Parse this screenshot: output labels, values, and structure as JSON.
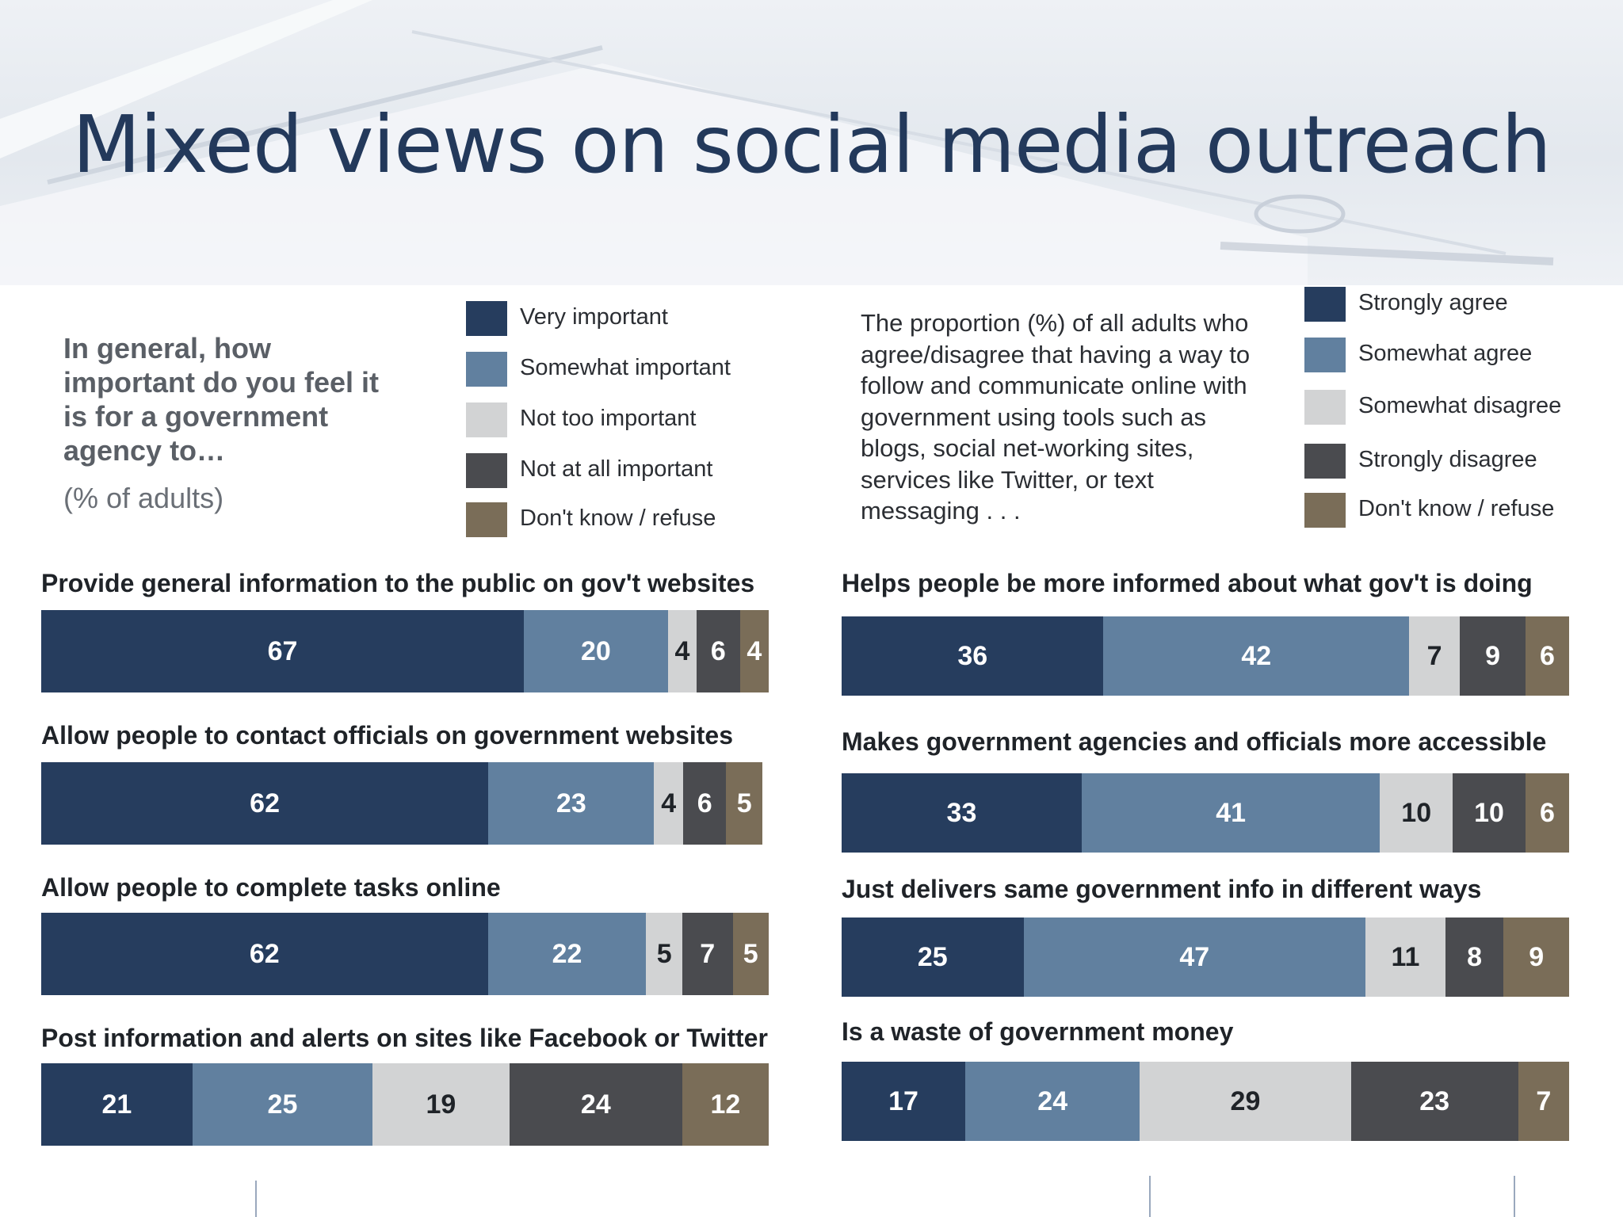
{
  "slide": {
    "title": "Mixed views on social media outreach"
  },
  "colors": {
    "dark_navy": "#263d5e",
    "steel_blue": "#61809f",
    "light_gray": "#d2d3d4",
    "dark_gray": "#4a4b4f",
    "taupe": "#7a6d58",
    "title_blue": "#23395b"
  },
  "left_panel": {
    "question": "In general, how important do you feel it is for a government agency to…",
    "subtitle": "(% of adults)",
    "legend": [
      "Very important",
      "Somewhat important",
      "Not too important",
      "Not at all important",
      "Don't know / refuse"
    ]
  },
  "right_panel": {
    "question": "The proportion (%) of all adults who agree/disagree that having a way to follow and communicate online with government using tools such as blogs, social net-working sites, services like Twitter, or text messaging . . .",
    "legend": [
      "Strongly agree",
      "Somewhat agree",
      "Somewhat disagree",
      "Strongly disagree",
      "Don't know / refuse"
    ]
  },
  "chart_data": [
    {
      "type": "bar",
      "stacked": true,
      "orientation": "horizontal",
      "title": "In general, how important do you feel it is for a government agency to…",
      "subtitle": "(% of adults)",
      "legend_labels": [
        "Very important",
        "Somewhat important",
        "Not too important",
        "Not at all important",
        "Don't know / refuse"
      ],
      "categories": [
        "Provide general information to the public on gov't websites",
        "Allow people to contact officials on government websites",
        "Allow people to complete tasks online",
        "Post information and alerts on sites like Facebook or Twitter"
      ],
      "series": [
        {
          "name": "Very important",
          "values": [
            67,
            62,
            62,
            21
          ]
        },
        {
          "name": "Somewhat important",
          "values": [
            20,
            23,
            22,
            25
          ]
        },
        {
          "name": "Not too important",
          "values": [
            4,
            4,
            5,
            19
          ]
        },
        {
          "name": "Not at all important",
          "values": [
            6,
            6,
            7,
            24
          ]
        },
        {
          "name": "Don't know / refuse",
          "values": [
            4,
            5,
            5,
            12
          ]
        }
      ]
    },
    {
      "type": "bar",
      "stacked": true,
      "orientation": "horizontal",
      "title": "The proportion (%) of all adults who agree/disagree that having a way to follow and communicate online with government using tools such as blogs, social net-working sites, services like Twitter, or text messaging . . .",
      "legend_labels": [
        "Strongly agree",
        "Somewhat agree",
        "Somewhat disagree",
        "Strongly disagree",
        "Don't know / refuse"
      ],
      "categories": [
        "Helps people be more informed about what gov't is doing",
        "Makes government agencies and officials more accessible",
        "Just delivers same government info in different ways",
        "Is a waste of government money"
      ],
      "series": [
        {
          "name": "Strongly agree",
          "values": [
            36,
            33,
            25,
            17
          ]
        },
        {
          "name": "Somewhat agree",
          "values": [
            42,
            41,
            47,
            24
          ]
        },
        {
          "name": "Somewhat disagree",
          "values": [
            7,
            10,
            11,
            29
          ]
        },
        {
          "name": "Strongly disagree",
          "values": [
            9,
            10,
            8,
            23
          ]
        },
        {
          "name": "Don't know / refuse",
          "values": [
            6,
            6,
            9,
            7
          ]
        }
      ]
    }
  ]
}
